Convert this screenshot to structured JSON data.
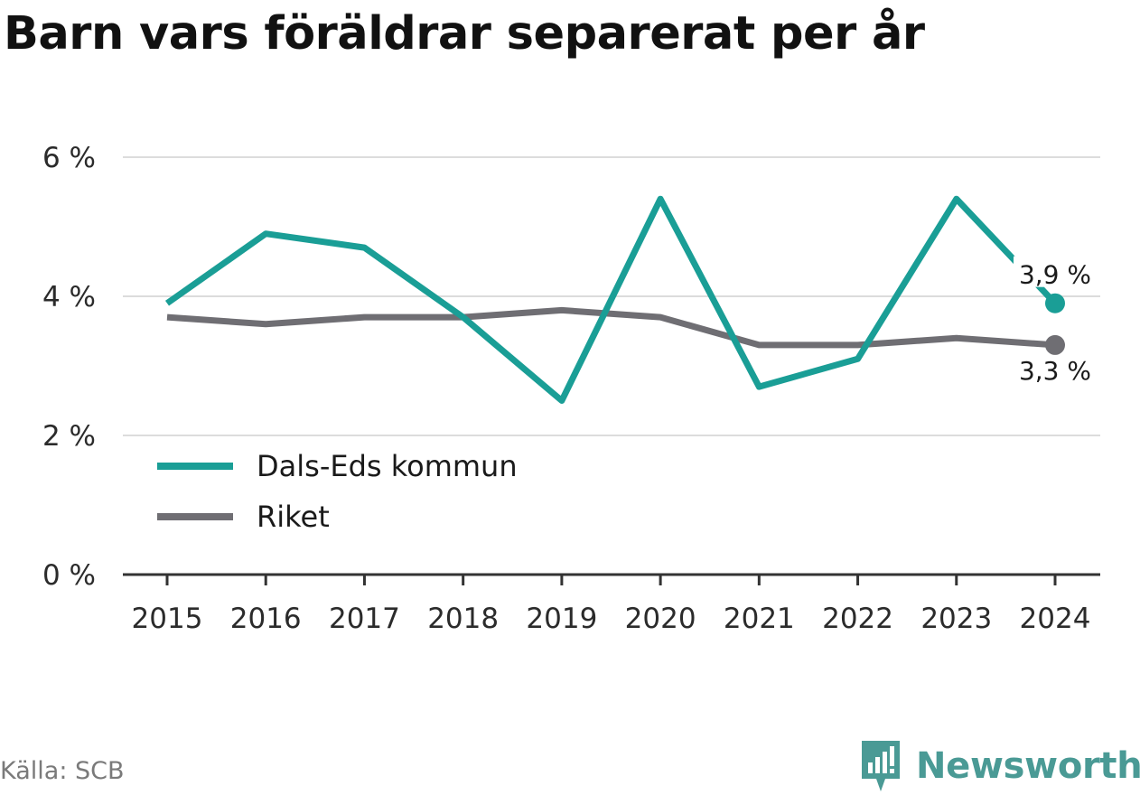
{
  "title": "Barn vars föräldrar separerat per år",
  "source": "Källa: SCB",
  "brand": {
    "name": "Newsworthy",
    "icon": "newsworthy-logo-icon",
    "color": "#4a9a95"
  },
  "chart_data": {
    "type": "line",
    "title": "Barn vars föräldrar separerat per år",
    "x": [
      2015,
      2016,
      2017,
      2018,
      2019,
      2020,
      2021,
      2022,
      2023,
      2024
    ],
    "x_tick_labels": [
      "2015",
      "2016",
      "2017",
      "2018",
      "2019",
      "2020",
      "2021",
      "2022",
      "2023",
      "2024"
    ],
    "ylim": [
      0,
      6
    ],
    "y_ticks": [
      0,
      2,
      4,
      6
    ],
    "y_tick_labels": [
      "0 %",
      "2 %",
      "4 %",
      "6 %"
    ],
    "grid": true,
    "legend_position": "bottom-left",
    "series": [
      {
        "name": "Dals-Eds kommun",
        "color": "#1a9e96",
        "values": [
          3.9,
          4.9,
          4.7,
          3.7,
          2.5,
          5.4,
          2.7,
          3.1,
          5.4,
          3.9
        ],
        "end_label": "3,9 %"
      },
      {
        "name": "Riket",
        "color": "#6f6e73",
        "values": [
          3.7,
          3.6,
          3.7,
          3.7,
          3.8,
          3.7,
          3.3,
          3.3,
          3.4,
          3.3
        ],
        "end_label": "3,3 %"
      }
    ]
  }
}
